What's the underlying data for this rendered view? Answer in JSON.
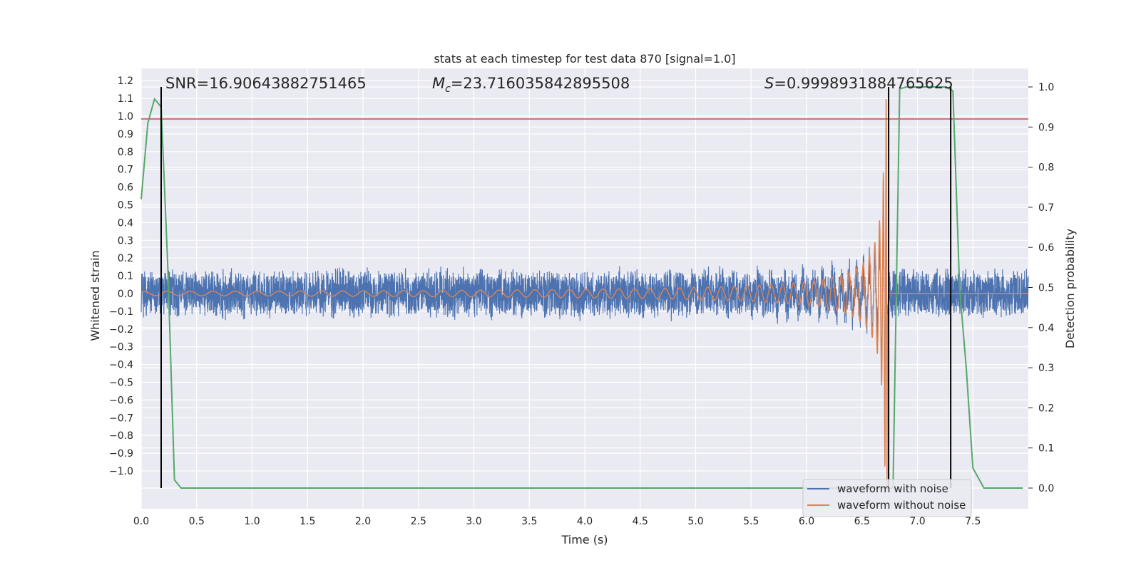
{
  "chart_data": {
    "type": "line",
    "title": "stats at each timestep for test data 870 [signal=1.0]",
    "xlabel": "Time (s)",
    "ylabel_left": "Whitened strain",
    "ylabel_right": "Detection probability",
    "xlim": [
      0.0,
      8.0
    ],
    "ylim_left": [
      -1.2,
      1.25
    ],
    "ylim_right": [
      -0.05,
      1.03
    ],
    "x_ticks": [
      "0.0",
      "0.5",
      "1.0",
      "1.5",
      "2.0",
      "2.5",
      "3.0",
      "3.5",
      "4.0",
      "4.5",
      "5.0",
      "5.5",
      "6.0",
      "6.5",
      "7.0",
      "7.5"
    ],
    "y_ticks_left": [
      "1.2",
      "1.1",
      "1.0",
      "0.9",
      "0.8",
      "0.7",
      "0.6",
      "0.5",
      "0.4",
      "0.3",
      "0.2",
      "0.1",
      "0.0",
      "−0.1",
      "−0.2",
      "−0.3",
      "−0.4",
      "−0.5",
      "−0.6",
      "−0.7",
      "−0.8",
      "−0.9",
      "−1.0"
    ],
    "y_ticks_right": [
      "1.0",
      "0.9",
      "0.8",
      "0.7",
      "0.6",
      "0.5",
      "0.4",
      "0.3",
      "0.2",
      "0.1",
      "0.0"
    ],
    "grid": true,
    "legend_position": "lower-right",
    "annotations": {
      "snr": "SNR=16.90643882751465",
      "mc_symbol": "M",
      "mc_sub": "c",
      "mc_value": "=23.716035842895508",
      "s_symbol": "S",
      "s_value": "=0.9998931884765625"
    },
    "threshold": 0.92,
    "vertical_markers": [
      0.18,
      6.74,
      7.3
    ],
    "series": [
      {
        "name": "waveform with noise",
        "color": "#4c72b0",
        "axis": "left",
        "noise_amplitude": 0.15,
        "chirp_peak_time": 6.73
      },
      {
        "name": "waveform without noise",
        "color": "#dd8452",
        "axis": "left",
        "chirp_peak_time": 6.73
      },
      {
        "name": "detection probability",
        "color": "#55a868",
        "axis": "right",
        "x": [
          0.0,
          0.06,
          0.12,
          0.18,
          0.24,
          0.3,
          0.36,
          6.72,
          6.78,
          6.84,
          6.9,
          7.26,
          7.32,
          7.38,
          7.44,
          7.5,
          7.6,
          7.95
        ],
        "values": [
          0.72,
          0.91,
          0.97,
          0.95,
          0.55,
          0.02,
          0.0,
          0.0,
          0.0,
          0.995,
          1.0,
          1.0,
          0.99,
          0.5,
          0.3,
          0.05,
          0.0,
          0.0
        ]
      }
    ],
    "colors": {
      "background": "#eaeaf2",
      "grid": "#ffffff",
      "threshold": "#c44e52",
      "marker": "#000000"
    }
  }
}
